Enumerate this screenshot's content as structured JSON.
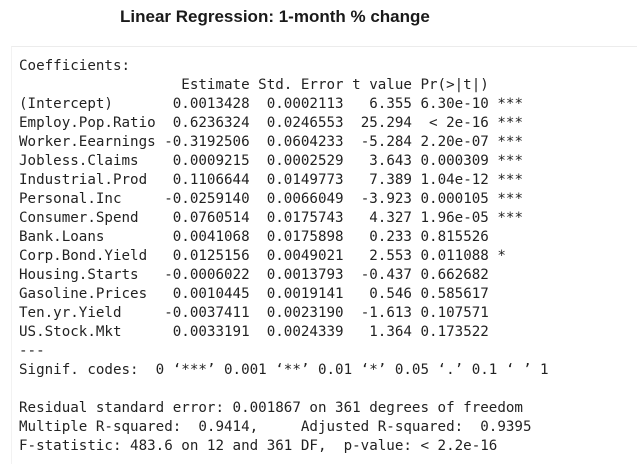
{
  "title": "Linear Regression: 1-month % change",
  "coefficients_label": "Coefficients:",
  "columns": [
    "Estimate",
    "Std. Error",
    "t value",
    "Pr(>|t|)"
  ],
  "rows": [
    {
      "name": "(Intercept)",
      "estimate": "0.0013428",
      "std_error": "0.0002113",
      "t_value": "6.355",
      "p_value": "6.30e-10",
      "signif": "***"
    },
    {
      "name": "Employ.Pop.Ratio",
      "estimate": "0.6236324",
      "std_error": "0.0246553",
      "t_value": "25.294",
      "p_value": "< 2e-16",
      "signif": "***"
    },
    {
      "name": "Worker.Eearnings",
      "estimate": "-0.3192506",
      "std_error": "0.0604233",
      "t_value": "-5.284",
      "p_value": "2.20e-07",
      "signif": "***"
    },
    {
      "name": "Jobless.Claims",
      "estimate": "0.0009215",
      "std_error": "0.0002529",
      "t_value": "3.643",
      "p_value": "0.000309",
      "signif": "***"
    },
    {
      "name": "Industrial.Prod",
      "estimate": "0.1106644",
      "std_error": "0.0149773",
      "t_value": "7.389",
      "p_value": "1.04e-12",
      "signif": "***"
    },
    {
      "name": "Personal.Inc",
      "estimate": "-0.0259140",
      "std_error": "0.0066049",
      "t_value": "-3.923",
      "p_value": "0.000105",
      "signif": "***"
    },
    {
      "name": "Consumer.Spend",
      "estimate": "0.0760514",
      "std_error": "0.0175743",
      "t_value": "4.327",
      "p_value": "1.96e-05",
      "signif": "***"
    },
    {
      "name": "Bank.Loans",
      "estimate": "0.0041068",
      "std_error": "0.0175898",
      "t_value": "0.233",
      "p_value": "0.815526",
      "signif": ""
    },
    {
      "name": "Corp.Bond.Yield",
      "estimate": "0.0125156",
      "std_error": "0.0049021",
      "t_value": "2.553",
      "p_value": "0.011088",
      "signif": "*"
    },
    {
      "name": "Housing.Starts",
      "estimate": "-0.0006022",
      "std_error": "0.0013793",
      "t_value": "-0.437",
      "p_value": "0.662682",
      "signif": ""
    },
    {
      "name": "Gasoline.Prices",
      "estimate": "0.0010445",
      "std_error": "0.0019141",
      "t_value": "0.546",
      "p_value": "0.585617",
      "signif": ""
    },
    {
      "name": "Ten.yr.Yield",
      "estimate": "-0.0037411",
      "std_error": "0.0023190",
      "t_value": "-1.613",
      "p_value": "0.107571",
      "signif": ""
    },
    {
      "name": "US.Stock.Mkt",
      "estimate": "0.0033191",
      "std_error": "0.0024339",
      "t_value": "1.364",
      "p_value": "0.173522",
      "signif": ""
    }
  ],
  "separator": "---",
  "signif_codes": "Signif. codes:  0 ‘***’ 0.001 ‘**’ 0.01 ‘*’ 0.05 ‘.’ 0.1 ‘ ’ 1",
  "residual_se": "Residual standard error: 0.001867 on 361 degrees of freedom",
  "r_squared": "Multiple R-squared:  0.9414,\tAdjusted R-squared:  0.9395",
  "f_statistic": "F-statistic: 483.6 on 12 and 361 DF,  p-value: < 2.2e-16"
}
